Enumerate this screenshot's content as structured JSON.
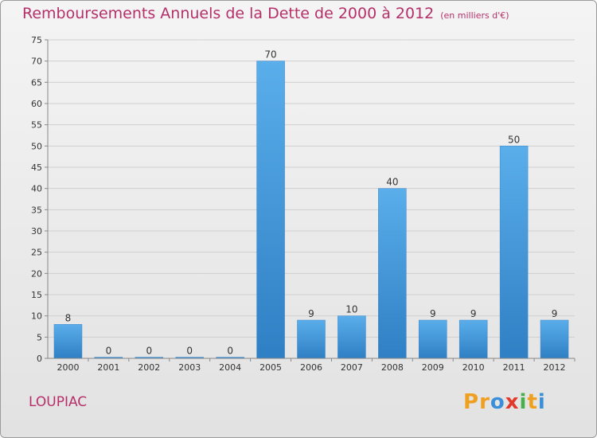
{
  "chart_data": {
    "type": "bar",
    "title": "Remboursements Annuels de la Dette de 2000 à 2012",
    "subtitle": "(en milliers d'€)",
    "categories": [
      "2000",
      "2001",
      "2002",
      "2003",
      "2004",
      "2005",
      "2006",
      "2007",
      "2008",
      "2009",
      "2010",
      "2011",
      "2012"
    ],
    "values": [
      8,
      0,
      0,
      0,
      0,
      70,
      9,
      10,
      40,
      9,
      9,
      50,
      9
    ],
    "data_labels": [
      "8",
      "0",
      "0",
      "0",
      "0",
      "70",
      "9",
      "10",
      "40",
      "9",
      "9",
      "50",
      "9"
    ],
    "ylim": [
      0,
      75
    ],
    "yticks": [
      0,
      5,
      10,
      15,
      20,
      25,
      30,
      35,
      40,
      45,
      50,
      55,
      60,
      65,
      70,
      75
    ],
    "grid": true,
    "bar_color": "#4a9fdf"
  },
  "footer": {
    "commune": "LOUPIAC",
    "logo_letters": [
      "P",
      "r",
      "o",
      "x",
      "i",
      "t",
      "i"
    ],
    "logo_colors": [
      "#f0a020",
      "#f0a020",
      "#3a8fd8",
      "#e23a2a",
      "#48b048",
      "#f0a020",
      "#3a8fd8"
    ]
  }
}
